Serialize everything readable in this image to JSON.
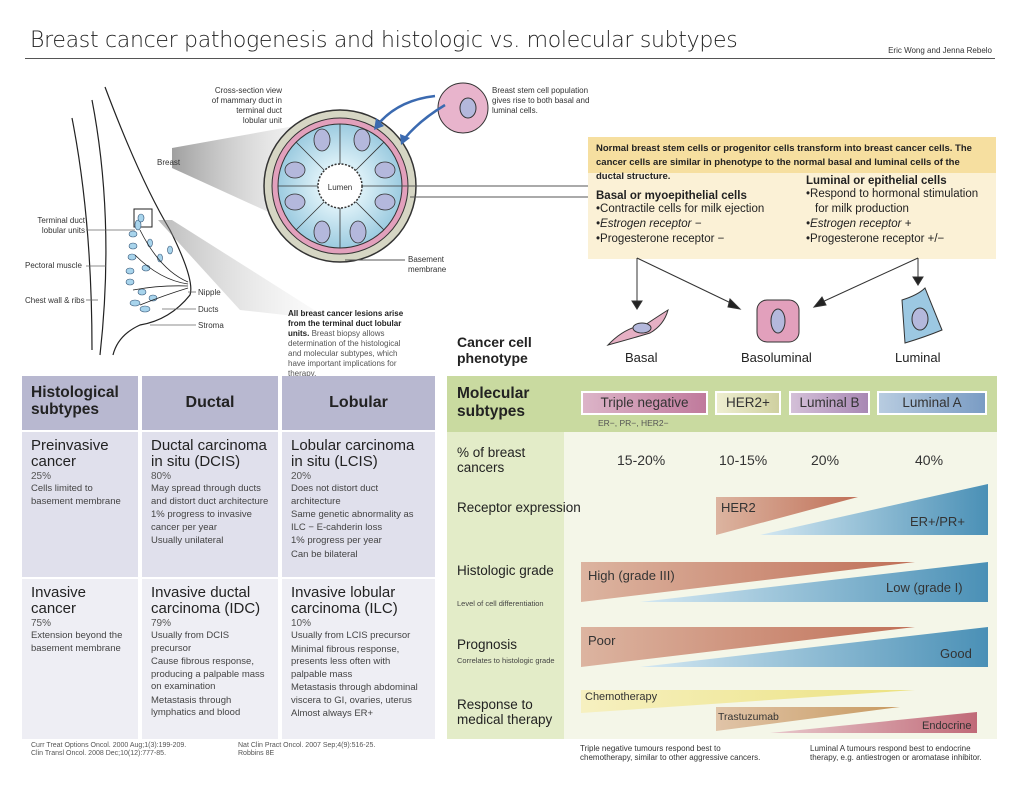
{
  "title": "Breast cancer pathogenesis and histologic vs. molecular subtypes",
  "authors": "Eric Wong and Jenna Rebelo",
  "anatomy": {
    "cross_section": "Cross-section view of mammary duct in terminal duct lobular unit",
    "breast": "Breast",
    "tdlu": "Terminal duct lobular units",
    "pectoral": "Pectoral muscle",
    "chest": "Chest wall & ribs",
    "nipple": "Nipple",
    "ducts": "Ducts",
    "stroma": "Stroma",
    "lumen": "Lumen",
    "basement": "Basement membrane",
    "stem_cell": "Breast stem cell population gives rise to both basal and luminal cells.",
    "note_bold": "All breast cancer lesions arise from the terminal duct lobular units.",
    "note_rest": " Breast biopsy allows determination of the histological and molecular subtypes, which have important implications for therapy."
  },
  "cells": {
    "intro": "Normal breast stem cells or progenitor cells transform into breast cancer cells. The cancer cells are similar in phenotype to the normal basal and luminal cells of the ductal structure.",
    "basal_title": "Basal or myoepithelial cells",
    "basal_items": [
      "•Contractile cells for milk ejection",
      "•Estrogen receptor −",
      "•Progesterone receptor −"
    ],
    "luminal_title": "Luminal or epithelial cells",
    "luminal_items": [
      "•Respond to hormonal stimulation",
      "for milk production",
      "•Estrogen receptor +",
      "•Progesterone receptor +/−"
    ],
    "phenotype_label": "Cancer cell phenotype",
    "phenotypes": [
      "Basal",
      "Basoluminal",
      "Luminal"
    ]
  },
  "histological": {
    "headers": [
      "Histological subtypes",
      "Ductal",
      "Lobular"
    ],
    "rows": [
      [
        {
          "title": "Preinvasive cancer",
          "pct": "25%",
          "desc": [
            "Cells limited to basement membrane"
          ]
        },
        {
          "title": "Ductal carcinoma in situ (DCIS)",
          "pct": "80%",
          "desc": [
            "May spread through ducts and distort duct architecture",
            "1% progress to invasive cancer per year",
            "Usually unilateral"
          ]
        },
        {
          "title": "Lobular carcinoma in situ (LCIS)",
          "pct": "20%",
          "desc": [
            "Does not distort duct architecture",
            "Same genetic abnormality as ILC − E-cahderin loss",
            "1% progress per year",
            "Can be bilateral"
          ]
        }
      ],
      [
        {
          "title": "Invasive cancer",
          "pct": "75%",
          "desc": [
            "Extension beyond the basement membrane"
          ]
        },
        {
          "title": "Invasive ductal carcinoma (IDC)",
          "pct": "79%",
          "desc": [
            "Usually from DCIS precursor",
            "Cause fibrous response, producing a palpable mass on examination",
            "Metastasis through lymphatics and blood"
          ]
        },
        {
          "title": "Invasive lobular carcinoma (ILC)",
          "pct": "10%",
          "desc": [
            "Usually from LCIS precursor",
            "Minimal fibrous response, presents less often with palpable mass",
            "Metastasis through abdominal viscera to GI, ovaries, uterus",
            "Almost always ER+"
          ]
        }
      ]
    ],
    "refs_left": [
      "Curr Treat Options Oncol. 2000 Aug;1(3):199-209.",
      "Clin Transl Oncol. 2008 Dec;10(12):777-85."
    ],
    "refs_right": [
      "Nat Clin Pract Oncol. 2007 Sep;4(9):516-25.",
      "Robbins 8E"
    ]
  },
  "molecular": {
    "header": "Molecular subtypes",
    "subtypes": [
      {
        "label": "Triple negative",
        "color": "#c98aa8"
      },
      {
        "label": "HER2+",
        "color": "#dfe0b0"
      },
      {
        "label": "Luminal B",
        "color": "#b89ac0"
      },
      {
        "label": "Luminal A",
        "color": "#8eaed0"
      }
    ],
    "tn_note": "ER−, PR−, HER2−",
    "pct_label": "% of breast cancers",
    "pcts": [
      "15-20%",
      "10-15%",
      "20%",
      "40%"
    ],
    "receptor_label": "Receptor expression",
    "receptor": {
      "her2": "HER2",
      "er": "ER+/PR+"
    },
    "grade_label": "Histologic grade",
    "grade_sub": "Level of cell differentiation",
    "grade": {
      "high": "High (grade III)",
      "low": "Low (grade I)"
    },
    "prognosis_label": "Prognosis",
    "prognosis_sub": "Correlates to histologic grade",
    "prognosis": {
      "poor": "Poor",
      "good": "Good"
    },
    "therapy_label": "Response to medical therapy",
    "therapy": {
      "chemo": "Chemotherapy",
      "trastuzumab": "Trastuzumab",
      "endocrine": "Endocrine"
    },
    "note_left": "Triple negative tumours respond best to chemotherapy, similar to other aggressive cancers.",
    "note_right": "Luminal A tumours respond best to endocrine therapy, e.g. antiestrogen or aromatase inhibitor."
  },
  "colors": {
    "brown": "#c47a5c",
    "blue": "#4f93b8",
    "yellow": "#efe59a",
    "pink": "#c97080",
    "green": "#c9daa0",
    "lavender": "#b8b8d0"
  }
}
